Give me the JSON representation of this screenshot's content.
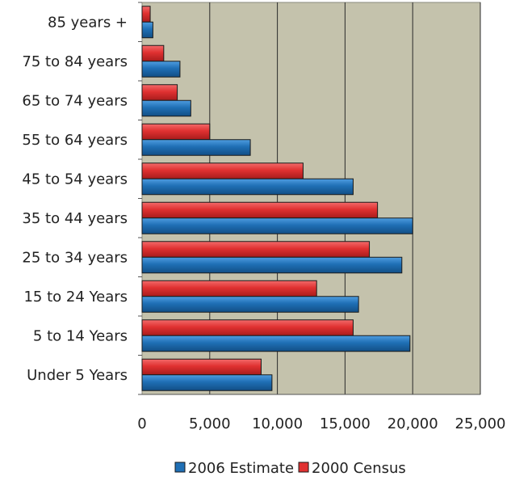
{
  "chart_data": {
    "type": "bar",
    "orientation": "horizontal",
    "categories": [
      "85 years +",
      "75 to 84 years",
      "65 to 74 years",
      "55 to 64 years",
      "45 to 54 years",
      "35 to 44 years",
      "25 to 34 years",
      "15 to 24 Years",
      "5 to 14 Years",
      "Under 5 Years"
    ],
    "series": [
      {
        "name": "2000 Census",
        "color": "#e03131",
        "values": [
          600,
          1600,
          2600,
          5000,
          11900,
          17400,
          16800,
          12900,
          15600,
          8800
        ]
      },
      {
        "name": "2006 Estimate",
        "color": "#1f6fb5",
        "values": [
          800,
          2800,
          3600,
          8000,
          15600,
          20000,
          19200,
          16000,
          19800,
          9600
        ]
      }
    ],
    "xlim": [
      0,
      25000
    ],
    "xticks": [
      "0",
      "5,000",
      "10,000",
      "15,000",
      "20,000",
      "25,000"
    ],
    "legend": [
      {
        "label": "2006 Estimate",
        "color": "#1f6fb5"
      },
      {
        "label": "2000 Census",
        "color": "#e03131"
      }
    ],
    "legend_position": "bottom",
    "plot_background": "#c4c2ac",
    "grid": true
  }
}
